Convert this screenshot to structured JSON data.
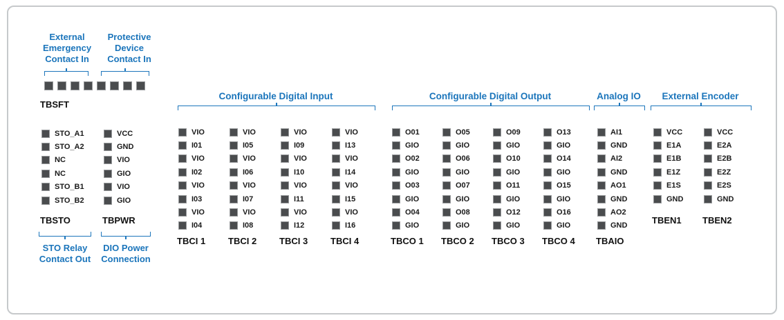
{
  "colors": {
    "accent": "#1b75bb",
    "pin_fill": "#4a4c4e",
    "pin_border": "#97999b",
    "text": "#1a1a1a",
    "frame_border": "#c6c9cb"
  },
  "callouts": {
    "emergency": [
      "External",
      "Emergency",
      "Contact In"
    ],
    "protective": [
      "Protective",
      "Device",
      "Contact In"
    ],
    "sto_out": [
      "STO Relay",
      "Contact Out"
    ],
    "dio_power": [
      "DIO Power",
      "Connection"
    ]
  },
  "tbsft": {
    "name": "TBSFT",
    "pin_count": 8
  },
  "groups": [
    {
      "title": "Configurable Digital Input"
    },
    {
      "title": "Configurable Digital Output"
    },
    {
      "title": "Analog IO"
    },
    {
      "title": "External Encoder"
    }
  ],
  "blocks": [
    {
      "name": "TBSTO",
      "pins": [
        "STO_A1",
        "STO_A2",
        "NC",
        "NC",
        "STO_B1",
        "STO_B2"
      ]
    },
    {
      "name": "TBPWR",
      "pins": [
        "VCC",
        "GND",
        "VIO",
        "GIO",
        "VIO",
        "GIO"
      ]
    },
    {
      "name": "TBCI 1",
      "pins": [
        "VIO",
        "I01",
        "VIO",
        "I02",
        "VIO",
        "I03",
        "VIO",
        "I04"
      ]
    },
    {
      "name": "TBCI 2",
      "pins": [
        "VIO",
        "I05",
        "VIO",
        "I06",
        "VIO",
        "I07",
        "VIO",
        "I08"
      ]
    },
    {
      "name": "TBCI 3",
      "pins": [
        "VIO",
        "I09",
        "VIO",
        "I10",
        "VIO",
        "I11",
        "VIO",
        "I12"
      ]
    },
    {
      "name": "TBCI 4",
      "pins": [
        "VIO",
        "I13",
        "VIO",
        "I14",
        "VIO",
        "I15",
        "VIO",
        "I16"
      ]
    },
    {
      "name": "TBCO 1",
      "pins": [
        "O01",
        "GIO",
        "O02",
        "GIO",
        "O03",
        "GIO",
        "O04",
        "GIO"
      ]
    },
    {
      "name": "TBCO 2",
      "pins": [
        "O05",
        "GIO",
        "O06",
        "GIO",
        "O07",
        "GIO",
        "O08",
        "GIO"
      ]
    },
    {
      "name": "TBCO 3",
      "pins": [
        "O09",
        "GIO",
        "O10",
        "GIO",
        "O11",
        "GIO",
        "O12",
        "GIO"
      ]
    },
    {
      "name": "TBCO 4",
      "pins": [
        "O13",
        "GIO",
        "O14",
        "GIO",
        "O15",
        "GIO",
        "O16",
        "GIO"
      ]
    },
    {
      "name": "TBAIO",
      "pins": [
        "AI1",
        "GND",
        "AI2",
        "GND",
        "AO1",
        "GND",
        "AO2",
        "GND"
      ]
    },
    {
      "name": "TBEN1",
      "pins": [
        "VCC",
        "E1A",
        "E1B",
        "E1Z",
        "E1S",
        "GND"
      ]
    },
    {
      "name": "TBEN2",
      "pins": [
        "VCC",
        "E2A",
        "E2B",
        "E2Z",
        "E2S",
        "GND"
      ]
    }
  ]
}
